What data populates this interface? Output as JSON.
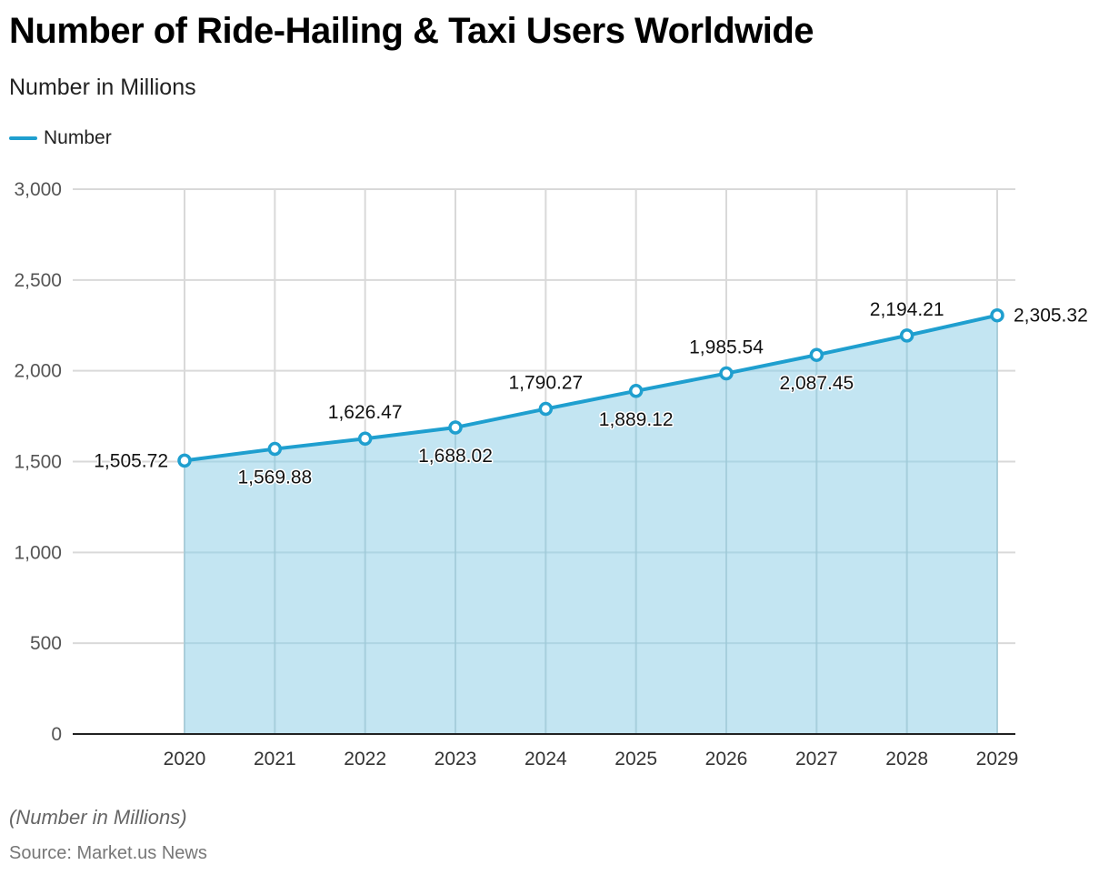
{
  "header": {
    "title": "Number of Ride-Hailing & Taxi Users Worldwide",
    "subtitle": "Number in Millions"
  },
  "footer": {
    "note": "(Number in Millions)",
    "source": "Source: Market.us News"
  },
  "colors": {
    "line": "#1f9fcf",
    "area": "#b9e1f0",
    "grid": "#d9d9d9",
    "axis": "#222222"
  },
  "chart_data": {
    "type": "area",
    "title": "Number of Ride-Hailing & Taxi Users Worldwide",
    "subtitle": "Number in Millions",
    "xlabel": "",
    "ylabel": "",
    "categories": [
      "2020",
      "2021",
      "2022",
      "2023",
      "2024",
      "2025",
      "2026",
      "2027",
      "2028",
      "2029"
    ],
    "series": [
      {
        "name": "Number",
        "values": [
          1505.72,
          1569.88,
          1626.47,
          1688.02,
          1790.27,
          1889.12,
          1985.54,
          2087.45,
          2194.21,
          2305.32
        ],
        "labels": [
          "1,505.72",
          "1,569.88",
          "1,626.47",
          "1,688.02",
          "1,790.27",
          "1,889.12",
          "1,985.54",
          "2,087.45",
          "2,194.21",
          "2,305.32"
        ],
        "label_positions": [
          "left",
          "below",
          "above",
          "below",
          "above",
          "below",
          "above",
          "below",
          "above",
          "right"
        ]
      }
    ],
    "ylim": [
      0,
      3000
    ],
    "yticks": [
      0,
      500,
      1000,
      1500,
      2000,
      2500,
      3000
    ],
    "ytick_labels": [
      "0",
      "500",
      "1,000",
      "1,500",
      "2,000",
      "2,500",
      "3,000"
    ],
    "grid": true,
    "legend": {
      "position": "top-left",
      "entries": [
        "Number"
      ]
    }
  }
}
